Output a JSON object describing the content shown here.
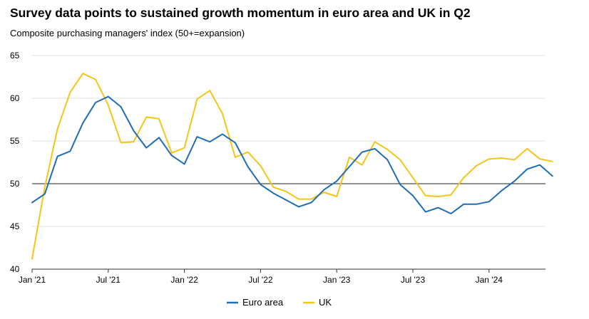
{
  "chart_data": {
    "type": "line",
    "title": "Survey data points to sustained growth momentum in euro area and UK in Q2",
    "subtitle": "Composite purchasing managers' index (50+=expansion)",
    "xlabel": "",
    "ylabel": "",
    "ylim": [
      40,
      65
    ],
    "yticks": [
      40,
      45,
      50,
      55,
      60,
      65
    ],
    "reference_line": 50,
    "x_tick_labels": [
      "Jan '21",
      "Jul '21",
      "Jan '22",
      "Jul '22",
      "Jan '23",
      "Jul '23",
      "Jan '24"
    ],
    "x": [
      "2021-01",
      "2021-02",
      "2021-03",
      "2021-04",
      "2021-05",
      "2021-06",
      "2021-07",
      "2021-08",
      "2021-09",
      "2021-10",
      "2021-11",
      "2021-12",
      "2022-01",
      "2022-02",
      "2022-03",
      "2022-04",
      "2022-05",
      "2022-06",
      "2022-07",
      "2022-08",
      "2022-09",
      "2022-10",
      "2022-11",
      "2022-12",
      "2023-01",
      "2023-02",
      "2023-03",
      "2023-04",
      "2023-05",
      "2023-06",
      "2023-07",
      "2023-08",
      "2023-09",
      "2023-10",
      "2023-11",
      "2023-12",
      "2024-01",
      "2024-02",
      "2024-03",
      "2024-04",
      "2024-05",
      "2024-06"
    ],
    "series": [
      {
        "name": "Euro area",
        "color": "#1f6db5",
        "values": [
          47.8,
          48.8,
          53.2,
          53.8,
          57.1,
          59.5,
          60.2,
          59.0,
          56.2,
          54.2,
          55.4,
          53.3,
          52.3,
          55.5,
          54.9,
          55.8,
          54.8,
          52.0,
          49.9,
          48.9,
          48.1,
          47.3,
          47.8,
          49.3,
          50.3,
          52.0,
          53.7,
          54.1,
          52.8,
          49.9,
          48.6,
          46.7,
          47.2,
          46.5,
          47.6,
          47.6,
          47.9,
          49.2,
          50.3,
          51.7,
          52.2,
          50.9
        ]
      },
      {
        "name": "UK",
        "color": "#f5c518",
        "values": [
          41.2,
          49.6,
          56.4,
          60.7,
          62.9,
          62.2,
          59.2,
          54.8,
          54.9,
          57.8,
          57.6,
          53.6,
          54.2,
          59.9,
          60.9,
          58.2,
          53.1,
          53.7,
          52.1,
          49.6,
          49.1,
          48.2,
          48.2,
          49.0,
          48.5,
          53.1,
          52.2,
          54.9,
          54.0,
          52.8,
          50.7,
          48.6,
          48.5,
          48.7,
          50.7,
          52.1,
          52.9,
          53.0,
          52.8,
          54.1,
          52.9,
          52.6
        ]
      }
    ],
    "legend": {
      "placement": "bottom-center",
      "entries": [
        "Euro area",
        "UK"
      ]
    },
    "grid": true
  }
}
